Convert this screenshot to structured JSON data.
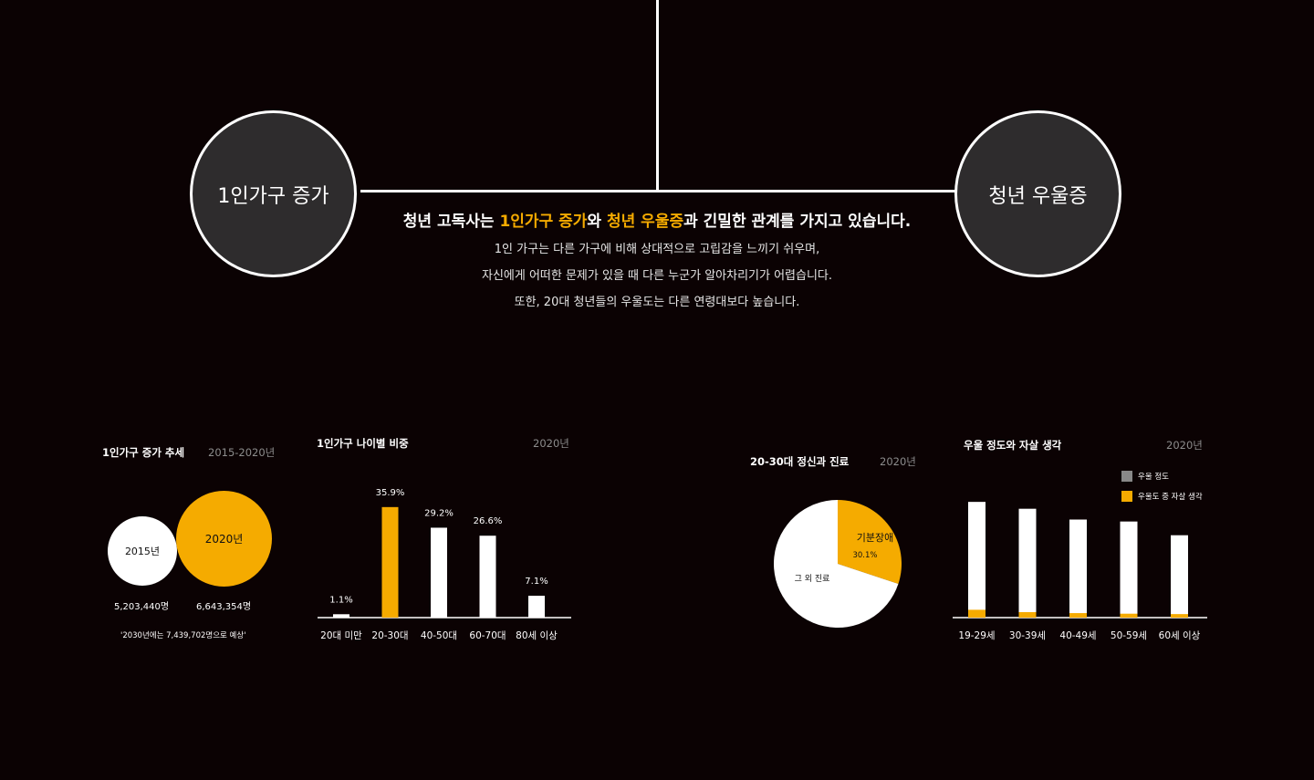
{
  "header": {
    "left_circle": "1인가구 증가",
    "right_circle": "청년 우울증",
    "headline_part1": "청년 고독사는 ",
    "headline_hl1": "1인가구 증가",
    "headline_part2": "와 ",
    "headline_hl2": "청년 우울증",
    "headline_part3": "과 긴밀한 관계를 가지고 있습니다.",
    "lines": [
      "1인 가구는 다른 가구에 비해 상대적으로 고립감을 느끼기 쉬우며,",
      "자신에게 어떠한 문제가 있을 때 다른 누군가 알아차리기가 어렵습니다.",
      "또한, 20대 청년들의 우울도는 다른 연령대보다 높습니다."
    ]
  },
  "colors": {
    "accent": "#f5ab00",
    "white": "#ffffff",
    "bg": "#0b0203",
    "circle": "#2e2c2d",
    "gray": "#888888"
  },
  "trend": {
    "title": "1인가구 증가 추세",
    "year_range": "2015-2020년",
    "circle1": "2015년",
    "circle2": "2020년",
    "value1": "5,203,440명",
    "value2": "6,643,354명",
    "note": "'2030년에는 7,439,702명으로 예상'"
  },
  "age_share": {
    "title": "1인가구 나이별 비중",
    "year": "2020년"
  },
  "mental": {
    "title": "20-30대 정신과 진료",
    "year": "2020년"
  },
  "depression": {
    "title": "우울 정도와 자살 생각",
    "year": "2020년"
  },
  "chart_data": [
    {
      "type": "bar",
      "title": "1인가구 증가 추세",
      "categories": [
        "2015년",
        "2020년"
      ],
      "values": [
        5203440,
        6643354
      ],
      "value_labels": [
        "5,203,440명",
        "6,643,354명"
      ],
      "colors": [
        "#ffffff",
        "#f5ab00"
      ]
    },
    {
      "type": "bar",
      "title": "1인가구 나이별 비중",
      "categories": [
        "20대 미만",
        "20-30대",
        "40-50대",
        "60-70대",
        "80세 이상"
      ],
      "values": [
        1.1,
        35.9,
        29.2,
        26.6,
        7.1
      ],
      "value_labels": [
        "1.1%",
        "35.9%",
        "29.2%",
        "26.6%",
        "7.1%"
      ],
      "highlight_index": 1,
      "ylim": [
        0,
        40
      ]
    },
    {
      "type": "pie",
      "title": "20-30대 정신과 진료",
      "labels": [
        "기분장애",
        "그 외 진료"
      ],
      "values": [
        30.1,
        69.9
      ],
      "value_labels": [
        "30.1%",
        ""
      ],
      "colors": [
        "#f5ab00",
        "#ffffff"
      ]
    },
    {
      "type": "bar",
      "title": "우울 정도와 자살 생각",
      "categories": [
        "19-29세",
        "30-39세",
        "40-49세",
        "50-59세",
        "60세 이상"
      ],
      "series": [
        {
          "name": "우울 정도",
          "values": [
            5.9,
            5.55,
            5.0,
            4.9,
            4.2
          ],
          "color": "#888888"
        },
        {
          "name": "우울도 중 자살 생각",
          "values": [
            0.4,
            0.28,
            0.23,
            0.2,
            0.18
          ],
          "color": "#f5ab00"
        }
      ],
      "legend": "top-right",
      "ylim": [
        0,
        6
      ]
    }
  ]
}
